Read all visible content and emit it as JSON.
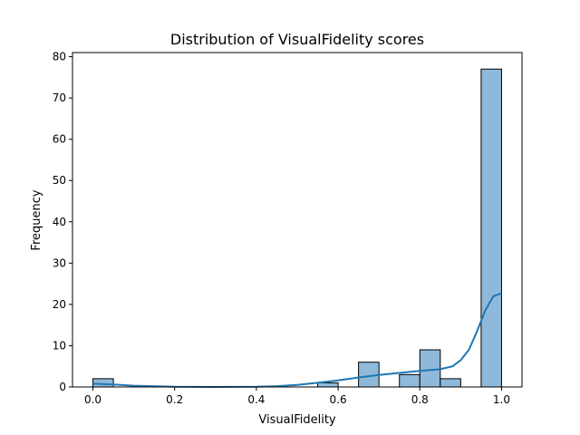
{
  "chart_data": {
    "type": "bar",
    "title": "Distribution of VisualFidelity scores",
    "xlabel": "VisualFidelity",
    "ylabel": "Frequency",
    "xlim": [
      -0.05,
      1.05
    ],
    "ylim": [
      0,
      81
    ],
    "x_ticks": [
      0.0,
      0.2,
      0.4,
      0.6,
      0.8,
      1.0
    ],
    "x_tick_labels": [
      "0.0",
      "0.2",
      "0.4",
      "0.6",
      "0.8",
      "1.0"
    ],
    "y_ticks": [
      0,
      10,
      20,
      30,
      40,
      50,
      60,
      70,
      80
    ],
    "y_tick_labels": [
      "0",
      "10",
      "20",
      "30",
      "40",
      "50",
      "60",
      "70",
      "80"
    ],
    "bin_width": 0.05,
    "bins": [
      {
        "x0": 0.0,
        "count": 2
      },
      {
        "x0": 0.55,
        "count": 1
      },
      {
        "x0": 0.65,
        "count": 6
      },
      {
        "x0": 0.75,
        "count": 3
      },
      {
        "x0": 0.8,
        "count": 9
      },
      {
        "x0": 0.85,
        "count": 2
      },
      {
        "x0": 0.95,
        "count": 77
      }
    ],
    "kde": {
      "x": [
        0.0,
        0.05,
        0.1,
        0.2,
        0.3,
        0.4,
        0.45,
        0.5,
        0.55,
        0.6,
        0.65,
        0.7,
        0.75,
        0.8,
        0.85,
        0.88,
        0.9,
        0.92,
        0.94,
        0.96,
        0.98,
        1.0
      ],
      "y": [
        0.8,
        0.6,
        0.3,
        0.05,
        0.0,
        0.05,
        0.2,
        0.5,
        1.0,
        1.6,
        2.3,
        2.9,
        3.4,
        3.9,
        4.3,
        5.0,
        6.5,
        9.0,
        13.5,
        18.5,
        22.0,
        22.7
      ]
    },
    "colors": {
      "bar_fill": "#8fb9da",
      "bar_edge": "#000000",
      "kde_line": "#1f77b4"
    }
  }
}
